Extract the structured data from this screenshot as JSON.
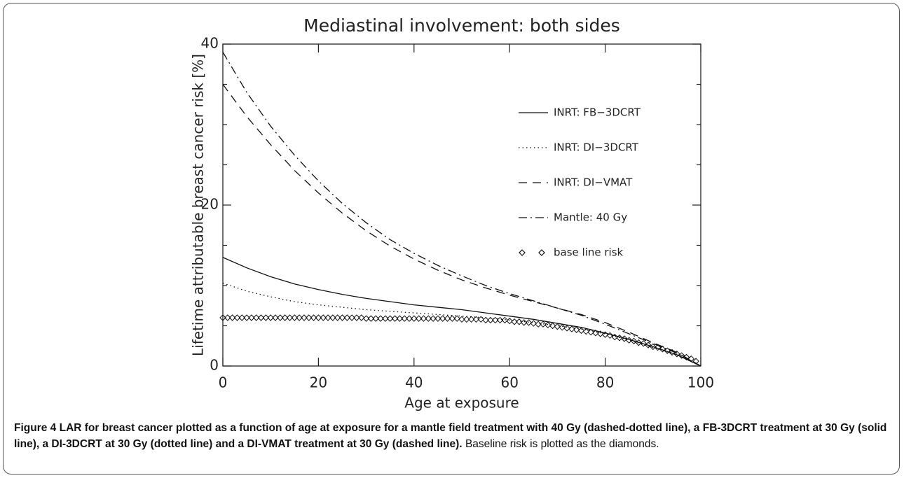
{
  "chart_data": {
    "type": "line",
    "title": "Mediastinal involvement: both sides",
    "xlabel": "Age at exposure",
    "ylabel": "Lifetime attributable breast cancer risk [%]",
    "x": [
      0,
      5,
      10,
      15,
      20,
      25,
      30,
      35,
      40,
      45,
      50,
      55,
      60,
      65,
      70,
      75,
      80,
      85,
      90,
      95,
      100
    ],
    "series": [
      {
        "name": "INRT: FB−3DCRT",
        "color": "#111111",
        "dash": "solid",
        "values": [
          13.5,
          12.2,
          11.1,
          10.2,
          9.5,
          8.9,
          8.4,
          8.0,
          7.6,
          7.3,
          7.0,
          6.6,
          6.2,
          5.8,
          5.3,
          4.8,
          4.1,
          3.3,
          2.4,
          1.4,
          0
        ]
      },
      {
        "name": "INRT: DI−3DCRT",
        "color": "#111111",
        "dash": "dotted",
        "values": [
          10.3,
          9.3,
          8.6,
          8.0,
          7.6,
          7.3,
          7.0,
          6.8,
          6.6,
          6.4,
          6.2,
          6.0,
          5.7,
          5.4,
          5.0,
          4.6,
          4.0,
          3.2,
          2.3,
          1.4,
          0
        ]
      },
      {
        "name": "INRT: DI−VMAT",
        "color": "#111111",
        "dash": "dashed",
        "values": [
          35,
          31,
          27.5,
          24.3,
          21.5,
          19,
          16.8,
          14.9,
          13.3,
          11.9,
          10.7,
          9.7,
          8.8,
          8.0,
          7.2,
          6.4,
          5.4,
          4.2,
          2.9,
          1.7,
          0
        ]
      },
      {
        "name": "Mantle: 40 Gy",
        "color": "#111111",
        "dash": "dashdot",
        "values": [
          39,
          34,
          29.8,
          26.2,
          23,
          20.2,
          17.8,
          15.7,
          14,
          12.5,
          11.2,
          10,
          9,
          8.1,
          7.2,
          6.3,
          5.2,
          4,
          2.8,
          1.6,
          0
        ]
      },
      {
        "name": "base line risk",
        "color": "#111111",
        "marker": "diamond",
        "x": [
          0,
          1,
          2,
          3,
          4,
          5,
          6,
          7,
          8,
          9,
          10,
          11,
          12,
          13,
          14,
          15,
          16,
          17,
          18,
          19,
          20,
          21,
          22,
          23,
          24,
          25,
          26,
          27,
          28,
          29,
          30,
          31,
          32,
          33,
          34,
          35,
          36,
          37,
          38,
          39,
          40,
          41,
          42,
          43,
          44,
          45,
          46,
          47,
          48,
          49,
          50,
          51,
          52,
          53,
          54,
          55,
          56,
          57,
          58,
          59,
          60,
          61,
          62,
          63,
          64,
          65,
          66,
          67,
          68,
          69,
          70,
          71,
          72,
          73,
          74,
          75,
          76,
          77,
          78,
          79,
          80,
          81,
          82,
          83,
          84,
          85,
          86,
          87,
          88,
          89,
          90,
          91,
          92,
          93,
          94,
          95,
          96,
          97,
          98,
          99
        ],
        "values": [
          6.0,
          6.0,
          6.0,
          6.0,
          6.0,
          6.0,
          6.0,
          6.0,
          6.0,
          6.0,
          6.0,
          6.0,
          6.0,
          6.0,
          6.0,
          6.0,
          6.0,
          6.0,
          6.0,
          6.0,
          6.0,
          6.0,
          6.0,
          6.0,
          6.0,
          6.0,
          6.0,
          6.0,
          6.0,
          6.0,
          5.9,
          5.9,
          5.9,
          5.9,
          5.9,
          5.9,
          5.9,
          5.9,
          5.9,
          5.9,
          5.9,
          5.9,
          5.9,
          5.9,
          5.9,
          5.9,
          5.9,
          5.9,
          5.9,
          5.9,
          5.8,
          5.8,
          5.8,
          5.8,
          5.8,
          5.7,
          5.7,
          5.7,
          5.7,
          5.7,
          5.6,
          5.5,
          5.5,
          5.4,
          5.4,
          5.3,
          5.2,
          5.2,
          5.1,
          5.0,
          4.9,
          4.8,
          4.7,
          4.6,
          4.5,
          4.4,
          4.3,
          4.2,
          4.1,
          4.0,
          3.9,
          3.8,
          3.6,
          3.5,
          3.4,
          3.2,
          3.1,
          2.9,
          2.8,
          2.6,
          2.4,
          2.3,
          2.1,
          1.9,
          1.7,
          1.5,
          1.3,
          1.1,
          0.9,
          0.6
        ]
      }
    ],
    "xlim": [
      0,
      100
    ],
    "xticks": [
      0,
      20,
      40,
      60,
      80,
      100
    ],
    "ylim": [
      0,
      40
    ],
    "yticks": [
      0,
      20,
      40
    ],
    "yminorticks": [
      5,
      10,
      15,
      25,
      30,
      35
    ],
    "grid": false
  },
  "caption": {
    "label": "Figure 4",
    "title": "LAR for breast cancer plotted as a function of age at exposure for a mantle field treatment with 40 Gy (dashed-dotted line), a FB-3DCRT treatment at 30 Gy (solid line), a DI-3DCRT at 30 Gy (dotted line) and a DI-VMAT treatment at 30 Gy (dashed line).",
    "text": "Baseline risk is plotted as the diamonds."
  }
}
